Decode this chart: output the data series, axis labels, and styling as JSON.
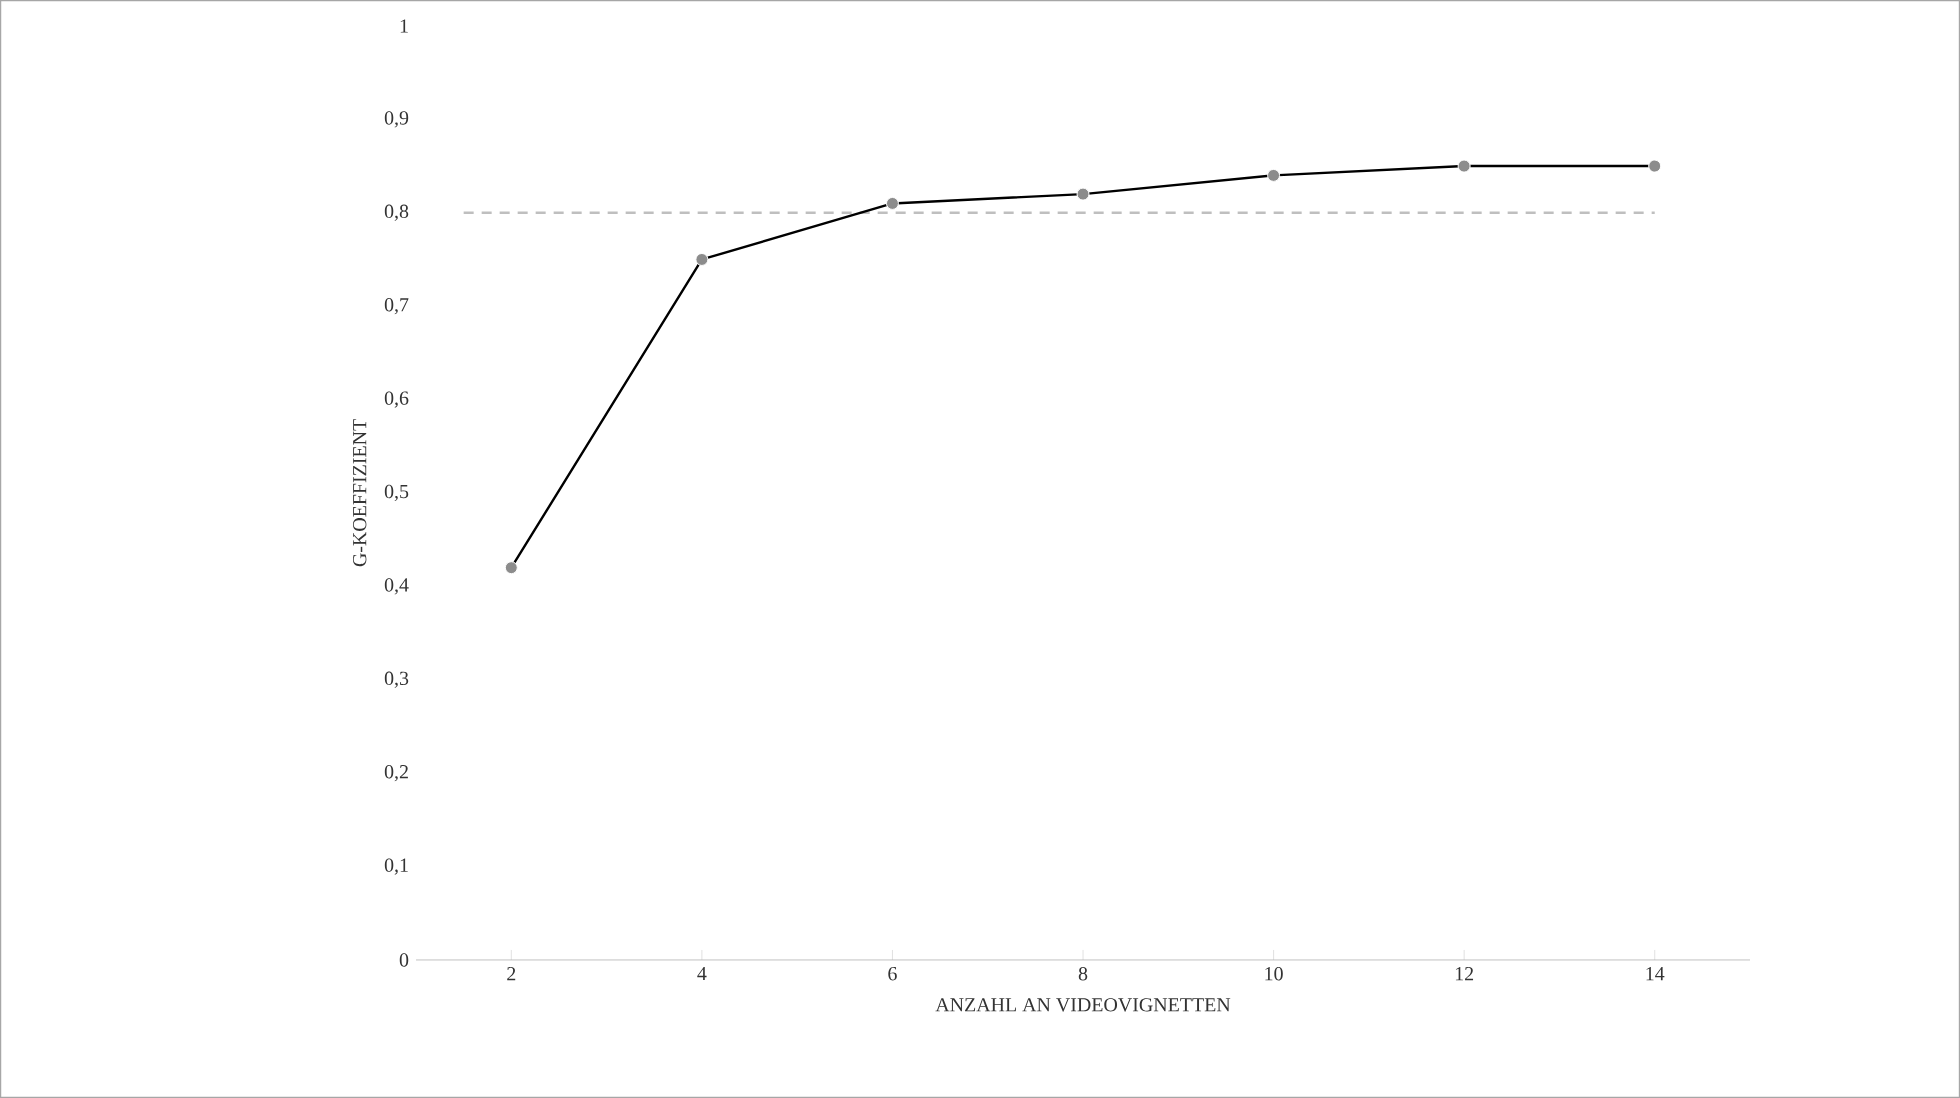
{
  "chart_data": {
    "type": "line",
    "xlabel": "ANZAHL AN VIDEOVIGNETTEN",
    "ylabel": "G-KOEFFIZIENT",
    "categories": [
      "2",
      "4",
      "6",
      "8",
      "10",
      "12",
      "14"
    ],
    "series": [
      {
        "color": "#000000",
        "values": [
          0.42,
          0.75,
          0.81,
          0.82,
          0.84,
          0.85,
          0.85
        ]
      }
    ],
    "ylim": [
      0,
      1
    ],
    "yticks": [
      0,
      {
        "value": 0.1,
        "label": "0,1"
      },
      {
        "value": 0.2,
        "label": "0,2"
      },
      {
        "value": 0.3,
        "label": "0,3"
      },
      {
        "value": 0.4,
        "label": "0,4"
      },
      {
        "value": 0.5,
        "label": "0,5"
      },
      {
        "value": 0.6,
        "label": "0,6"
      },
      {
        "value": 0.7,
        "label": "0,7"
      },
      {
        "value": 0.8,
        "label": "0,8"
      },
      {
        "value": 0.9,
        "label": "0,9"
      },
      1
    ],
    "ref_lines": [
      {
        "axis": "y",
        "value": 0.8,
        "color": "#bfbfbf",
        "line_style": "dashed"
      }
    ],
    "marker": "circle",
    "line_style": "solid",
    "grid": false
  }
}
